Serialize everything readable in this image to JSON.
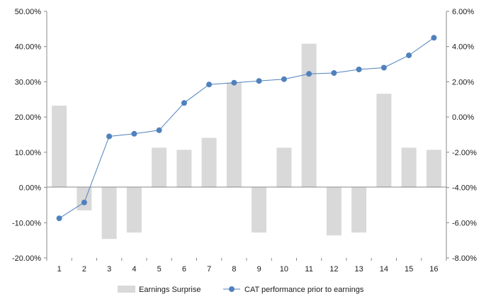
{
  "chart_data": {
    "type": "bar",
    "categories": [
      "1",
      "2",
      "3",
      "4",
      "5",
      "6",
      "7",
      "8",
      "9",
      "10",
      "11",
      "12",
      "13",
      "14",
      "15",
      "16"
    ],
    "series": [
      {
        "name": "Earnings Surprise",
        "type": "bar",
        "axis": "left",
        "color": "#d9d9d9",
        "values": [
          23.2,
          -6.5,
          -14.6,
          -12.8,
          11.3,
          10.7,
          14.1,
          29.8,
          -12.8,
          11.3,
          40.8,
          -13.6,
          -12.8,
          26.6,
          11.3,
          10.7
        ]
      },
      {
        "name": "CAT performance prior to earnings",
        "type": "line",
        "axis": "right",
        "color": "#4f81bd",
        "values": [
          -5.75,
          -4.85,
          -1.1,
          -0.95,
          -0.75,
          0.8,
          1.85,
          1.95,
          2.05,
          2.15,
          2.45,
          2.5,
          2.7,
          2.8,
          3.5,
          4.5
        ]
      }
    ],
    "y_left": {
      "ylim": [
        -20,
        50
      ],
      "ticks": [
        50,
        40,
        30,
        20,
        10,
        0,
        -10,
        -20
      ],
      "tick_labels": [
        "50.00%",
        "40.00%",
        "30.00%",
        "20.00%",
        "10.00%",
        "0.00%",
        "-10.00%",
        "-20.00%"
      ]
    },
    "y_right": {
      "ylim": [
        -8,
        6
      ],
      "ticks": [
        6,
        4,
        2,
        0,
        -2,
        -4,
        -6,
        -8
      ],
      "tick_labels": [
        "6.00%",
        "4.00%",
        "2.00%",
        "0.00%",
        "-2.00%",
        "-4.00%",
        "-6.00%",
        "-8.00%"
      ]
    },
    "grid": false,
    "legend_position": "bottom",
    "title": "",
    "xlabel": "",
    "ylabel": ""
  }
}
